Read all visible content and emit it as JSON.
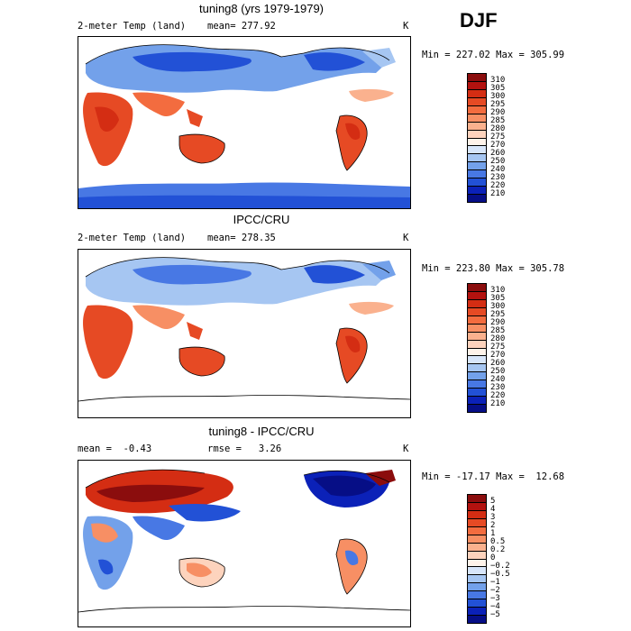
{
  "season": "DJF",
  "panels": [
    {
      "title": "tuning8 (yrs 1979-1979)",
      "variable": "2-meter Temp (land)",
      "stat": "mean= 277.92",
      "units": "K",
      "minmax": "Min = 227.02 Max = 305.99",
      "levels": [
        "310",
        "305",
        "300",
        "295",
        "290",
        "285",
        "280",
        "275",
        "270",
        "260",
        "250",
        "240",
        "230",
        "220",
        "210"
      ],
      "colors": [
        "#8b0d0d",
        "#b3120f",
        "#d42d13",
        "#e64a24",
        "#f36c3f",
        "#f78f64",
        "#fab18e",
        "#fdd3bd",
        "#fff3ea",
        "#d8e6fa",
        "#a6c6f2",
        "#73a1ea",
        "#4878e4",
        "#2251d6",
        "#0b21b8",
        "#060e86"
      ]
    },
    {
      "title": "IPCC/CRU",
      "variable": "2-meter Temp (land)",
      "stat": "mean= 278.35",
      "units": "K",
      "minmax": "Min = 223.80 Max = 305.78",
      "levels": [
        "310",
        "305",
        "300",
        "295",
        "290",
        "285",
        "280",
        "275",
        "270",
        "260",
        "250",
        "240",
        "230",
        "220",
        "210"
      ],
      "colors": [
        "#8b0d0d",
        "#b3120f",
        "#d42d13",
        "#e64a24",
        "#f36c3f",
        "#f78f64",
        "#fab18e",
        "#fdd3bd",
        "#fff3ea",
        "#d8e6fa",
        "#a6c6f2",
        "#73a1ea",
        "#4878e4",
        "#2251d6",
        "#0b21b8",
        "#060e86"
      ]
    },
    {
      "title": "tuning8 - IPCC/CRU",
      "stat": "mean =  -0.43",
      "stat2": "rmse =   3.26",
      "units": "K",
      "minmax": "Min = -17.17 Max =  12.68",
      "levels": [
        "5",
        "4",
        "3",
        "2",
        "1",
        "0.5",
        "0.2",
        "0",
        "−0.2",
        "−0.5",
        "−1",
        "−2",
        "−3",
        "−4",
        "−5"
      ],
      "colors": [
        "#8b0d0d",
        "#b3120f",
        "#d42d13",
        "#e64a24",
        "#f36c3f",
        "#f78f64",
        "#fab18e",
        "#fdd3bd",
        "#fff3ea",
        "#d8e6fa",
        "#a6c6f2",
        "#73a1ea",
        "#4878e4",
        "#2251d6",
        "#0b21b8",
        "#060e86"
      ]
    }
  ]
}
